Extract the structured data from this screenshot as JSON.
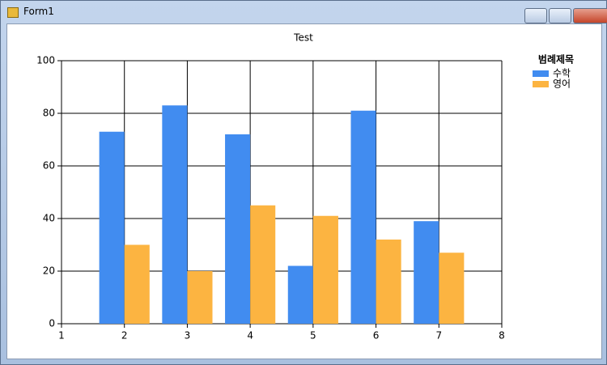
{
  "window": {
    "title": "Form1"
  },
  "chart_data": {
    "type": "bar",
    "title": "Test",
    "x": [
      2,
      3,
      4,
      5,
      6,
      7
    ],
    "series": [
      {
        "name": "수학",
        "color": "#418cf0",
        "values": [
          73,
          83,
          72,
          22,
          81,
          39
        ]
      },
      {
        "name": "영어",
        "color": "#fcb441",
        "values": [
          30,
          20,
          45,
          41,
          32,
          27
        ]
      }
    ],
    "xlim": [
      1,
      8
    ],
    "xticks": [
      1,
      2,
      3,
      4,
      5,
      6,
      7,
      8
    ],
    "ylim": [
      0,
      100
    ],
    "yticks": [
      0,
      20,
      40,
      60,
      80,
      100
    ],
    "grid": true,
    "legend_title": "범례제목",
    "legend": "right"
  }
}
